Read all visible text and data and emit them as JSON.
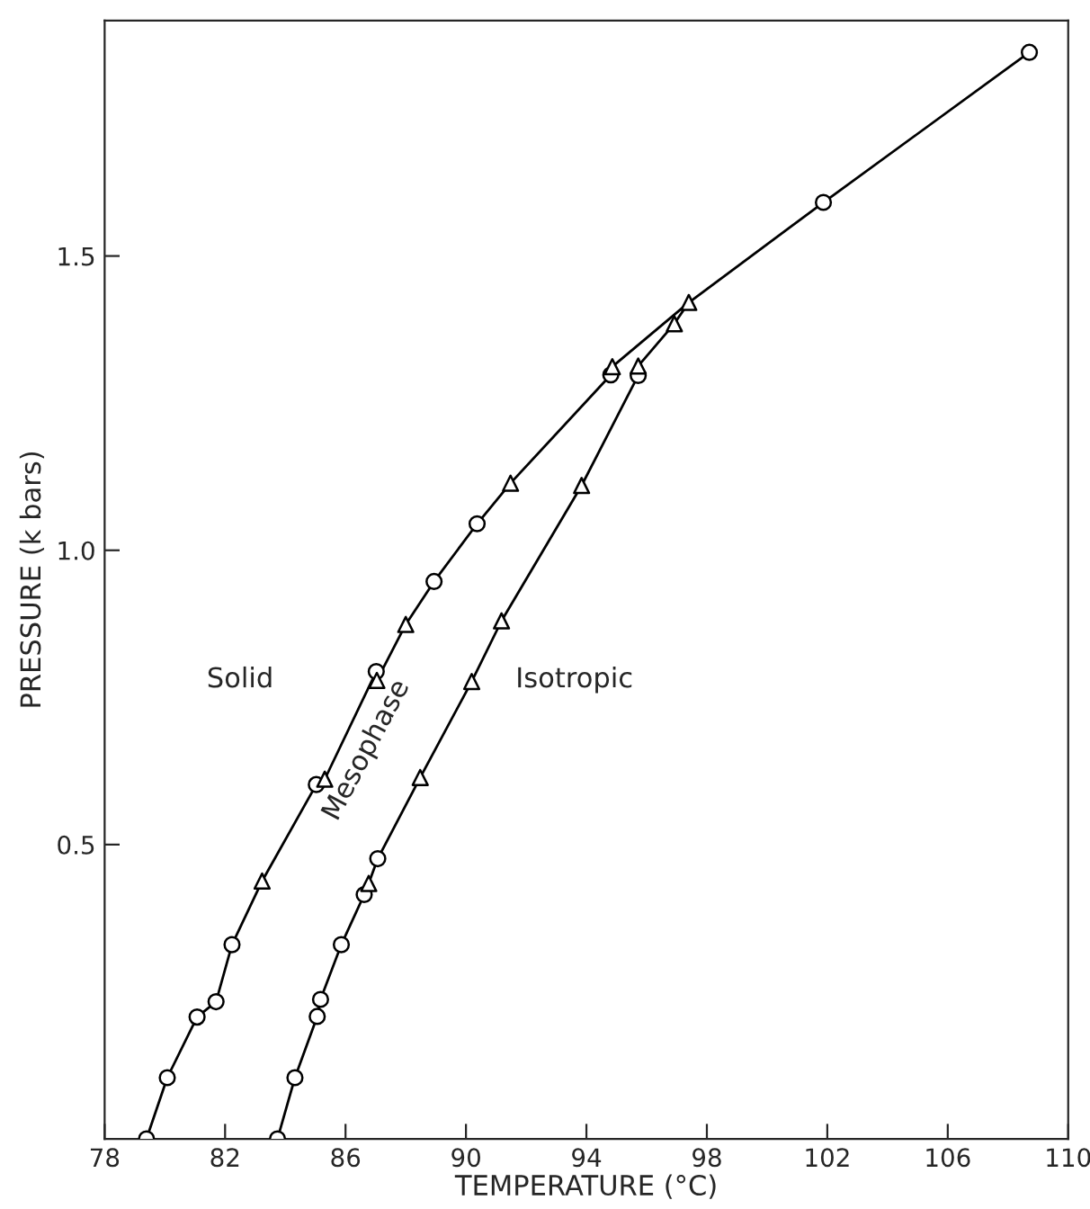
{
  "chart_data": {
    "type": "line",
    "xlabel": "TEMPERATURE (°C)",
    "ylabel": "PRESSURE (k bars)",
    "xlim": [
      78,
      110
    ],
    "xticks": [
      78,
      82,
      86,
      90,
      94,
      98,
      102,
      106,
      110
    ],
    "ylim": [
      0,
      1.9
    ],
    "yticks": [
      0.5,
      {
        "value": 1,
        "label": "1.0"
      },
      1.5
    ],
    "grid": false,
    "legend": false,
    "line_style": "solid",
    "annotations": [
      "Solid",
      "Mesophase",
      "Isotropic"
    ],
    "series": [
      {
        "color": "#000000",
        "marker": "none",
        "x": [
          79.39,
          80.08,
          81.07,
          81.7,
          82.23,
          83.23,
          85.03,
          85.31,
          87.02,
          87.04,
          88.0,
          88.94,
          90.37,
          91.48,
          94.81,
          94.86,
          97.4,
          101.87,
          108.71
        ],
        "values": [
          0,
          0.104,
          0.207,
          0.233,
          0.33,
          0.438,
          0.602,
          0.611,
          0.794,
          0.779,
          0.874,
          0.947,
          1.045,
          1.114,
          1.298,
          1.312,
          1.421,
          1.591,
          1.846
        ]
      },
      {
        "color": "#000000",
        "marker": "none",
        "x": [
          83.74,
          84.32,
          85.06,
          85.17,
          85.86,
          86.62,
          86.77,
          87.07,
          88.48,
          90.19,
          91.18,
          93.84,
          95.72,
          95.72,
          96.92,
          97.4
        ],
        "values": [
          0,
          0.104,
          0.208,
          0.237,
          0.33,
          0.415,
          0.434,
          0.476,
          0.614,
          0.777,
          0.88,
          1.11,
          1.297,
          1.313,
          1.385,
          1.421
        ]
      },
      {
        "type": "scatter",
        "color": "#000000",
        "marker": "circle",
        "x": [
          79.39,
          80.08,
          81.07,
          81.7,
          82.23,
          85.03,
          87.02,
          88.94,
          90.37,
          94.81,
          101.87,
          108.71,
          83.74,
          84.32,
          85.06,
          85.17,
          85.86,
          86.62,
          87.07,
          95.72
        ],
        "values": [
          0,
          0.104,
          0.207,
          0.233,
          0.33,
          0.602,
          0.794,
          0.947,
          1.045,
          1.298,
          1.591,
          1.846,
          0,
          0.104,
          0.208,
          0.237,
          0.33,
          0.415,
          0.476,
          1.297
        ]
      },
      {
        "type": "scatter",
        "color": "#000000",
        "marker": "triangle",
        "x": [
          83.23,
          85.31,
          87.04,
          88.0,
          91.48,
          94.86,
          96.92,
          97.4,
          86.77,
          88.48,
          90.19,
          91.18,
          93.84,
          95.72
        ],
        "values": [
          0.438,
          0.611,
          0.779,
          0.874,
          1.114,
          1.312,
          1.385,
          1.421,
          0.434,
          0.614,
          0.777,
          0.88,
          1.11,
          1.313
        ]
      }
    ]
  }
}
